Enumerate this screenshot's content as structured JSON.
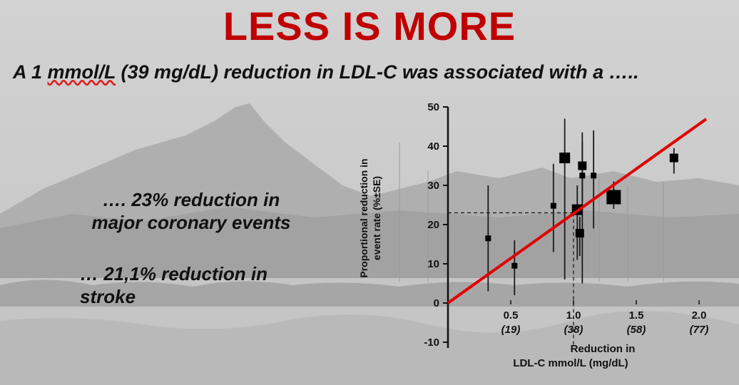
{
  "slide": {
    "title": "LESS IS MORE",
    "subtitle_pre": "A 1 ",
    "subtitle_unit": "mmol/L",
    "subtitle_post": " (39 mg/dL) reduction in LDL-C was associated with a …..",
    "point1_line1": "…. 23% reduction in",
    "point1_line2": "major coronary events",
    "point2_line1": "…  21,1% reduction in",
    "point2_line2": "stroke"
  },
  "colors": {
    "title": "#c00000",
    "regression_line": "#e00000",
    "markers": "#000000",
    "error_bars": "#1a1a1a"
  },
  "chart_data": {
    "type": "scatter",
    "x_tick_values": [
      0.5,
      1.0,
      1.5,
      2.0
    ],
    "x_tick_labels": [
      "0.5",
      "1.0",
      "1.5",
      "2.0"
    ],
    "x_tick_sublabels": [
      "(19)",
      "(38)",
      "(58)",
      "(77)"
    ],
    "xlabel_line1": "Reduction in",
    "xlabel_line2": "LDL-C mmol/L (mg/dL)",
    "ylabel_line1": "Proportional reduction in",
    "ylabel_line2": "event rate (%±SE)",
    "y_ticks": [
      -10,
      0,
      10,
      20,
      30,
      40,
      50
    ],
    "xlim": [
      0,
      2.0
    ],
    "ylim": [
      -10,
      50
    ],
    "grid": false,
    "points": [
      {
        "x": 0.32,
        "y": 16.5,
        "lo": 3,
        "hi": 30,
        "size": "small"
      },
      {
        "x": 0.53,
        "y": 9.5,
        "lo": 2,
        "hi": 16,
        "size": "small"
      },
      {
        "x": 0.84,
        "y": 24.8,
        "lo": 13,
        "hi": 35.5,
        "size": "small"
      },
      {
        "x": 0.93,
        "y": 37,
        "lo": 6,
        "hi": 47,
        "size": "large"
      },
      {
        "x": 1.03,
        "y": 23.8,
        "lo": 11,
        "hi": 30,
        "size": "large"
      },
      {
        "x": 1.05,
        "y": 17.8,
        "lo": 12,
        "hi": 22,
        "size": "medium"
      },
      {
        "x": 1.07,
        "y": 35,
        "lo": 26,
        "hi": 43.5,
        "size": "medium"
      },
      {
        "x": 1.07,
        "y": 32.5,
        "lo": 5,
        "hi": 41,
        "size": "small"
      },
      {
        "x": 1.16,
        "y": 32.5,
        "lo": 19,
        "hi": 44,
        "size": "small"
      },
      {
        "x": 1.32,
        "y": 27,
        "lo": 24,
        "hi": 31,
        "size": "xlarge"
      },
      {
        "x": 1.8,
        "y": 37,
        "lo": 33,
        "hi": 39.5,
        "size": "medium"
      }
    ],
    "regression_line": {
      "x": [
        0,
        2.0
      ],
      "y": [
        0,
        46
      ]
    },
    "reference": {
      "x": 1.0,
      "y": 23
    }
  }
}
